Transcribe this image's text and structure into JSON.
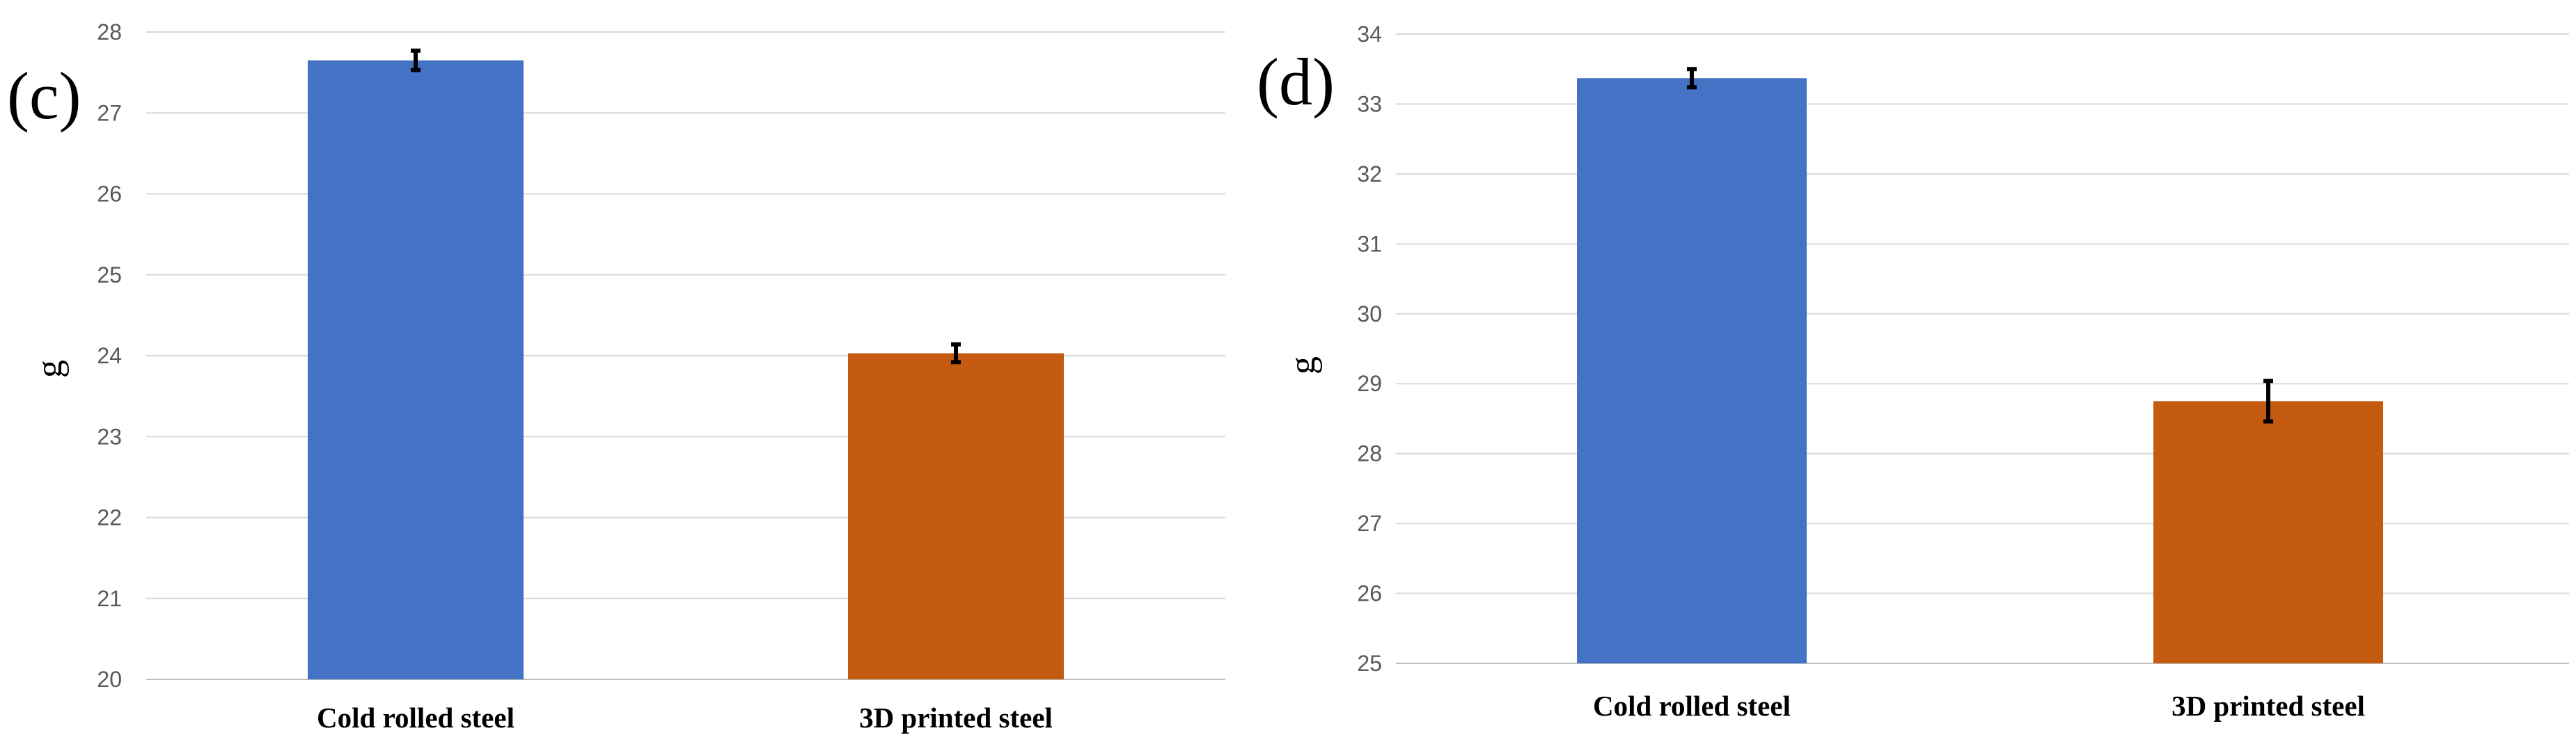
{
  "chart_data": [
    {
      "type": "bar",
      "panel_label": "(c)",
      "categories": [
        "Cold rolled steel",
        "3D printed steel"
      ],
      "values": [
        27.65,
        24.03
      ],
      "errors": [
        0.12,
        0.11
      ],
      "colors": [
        "#4472C4",
        "#C55A11"
      ],
      "ylabel": "g",
      "ylim": [
        20,
        28
      ],
      "yticks": [
        "20",
        "21",
        "22",
        "23",
        "24",
        "25",
        "26",
        "27",
        "28"
      ],
      "grid": true
    },
    {
      "type": "bar",
      "panel_label": "(d)",
      "categories": [
        "Cold rolled steel",
        "3D printed steel"
      ],
      "values": [
        33.37,
        28.75
      ],
      "errors": [
        0.13,
        0.29
      ],
      "colors": [
        "#4472C4",
        "#C55A11"
      ],
      "ylabel": "g",
      "ylim": [
        25,
        34
      ],
      "yticks": [
        "25",
        "26",
        "27",
        "28",
        "29",
        "30",
        "31",
        "32",
        "33",
        "34"
      ],
      "grid": true
    }
  ]
}
